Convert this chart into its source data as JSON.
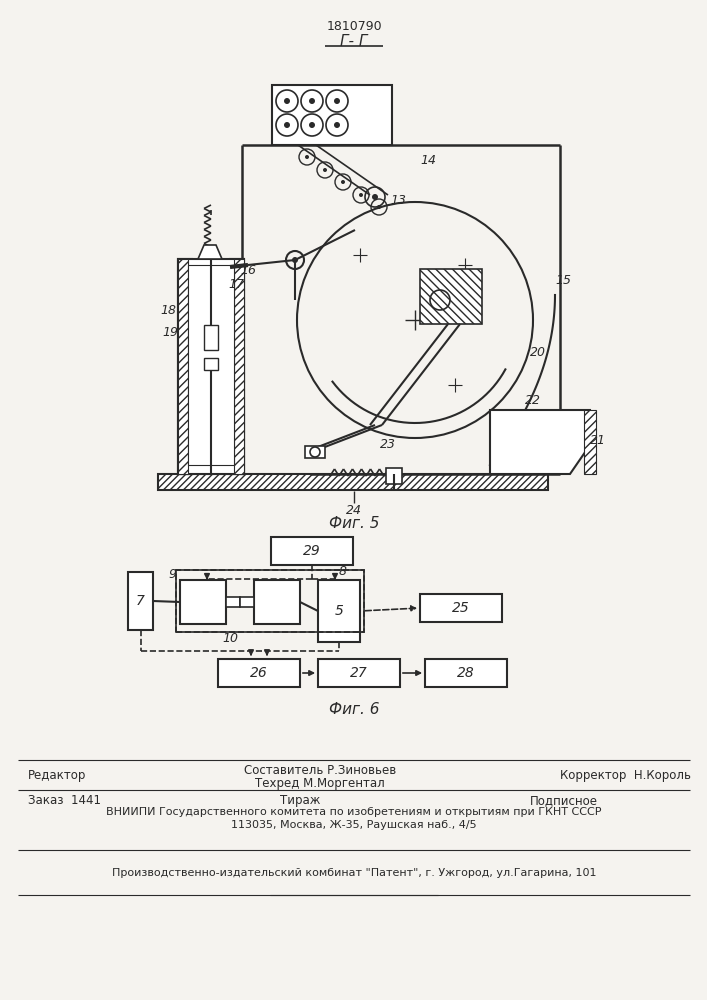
{
  "patent_number": "1810790",
  "section_label": "Г- Г",
  "fig5_label": "Фиг. 5",
  "fig6_label": "Фиг. 6",
  "bg_color": "#f5f3ef",
  "line_color": "#2a2a2a",
  "footer_line1_left": "Редактор",
  "footer_line1_center1": "Составитель Р.Зиновьев",
  "footer_line1_center2": "Техред М.Моргентал",
  "footer_line1_right": "Корректор  Н.Король",
  "footer_order": "Заказ  1441",
  "footer_tirazh": "Тираж",
  "footer_podp": "Подписное",
  "footer_vniip1": "ВНИИПИ Государственного комитета по изобретениям и открытиям при ГКНТ СССР",
  "footer_vniip2": "113035, Москва, Ж-35, Раушская наб., 4/5",
  "footer_patent": "Производственно-издательский комбинат \"Патент\", г. Ужгород, ул.Гагарина, 101",
  "fig5_num": "24",
  "labels_5": [
    [
      420,
      840,
      "14"
    ],
    [
      390,
      800,
      "13"
    ],
    [
      555,
      720,
      "15"
    ],
    [
      240,
      730,
      "16"
    ],
    [
      228,
      715,
      "17"
    ],
    [
      160,
      690,
      "18"
    ],
    [
      162,
      668,
      "19"
    ],
    [
      530,
      648,
      "20"
    ],
    [
      590,
      560,
      "21"
    ],
    [
      525,
      600,
      "22"
    ],
    [
      380,
      555,
      "23"
    ]
  ]
}
